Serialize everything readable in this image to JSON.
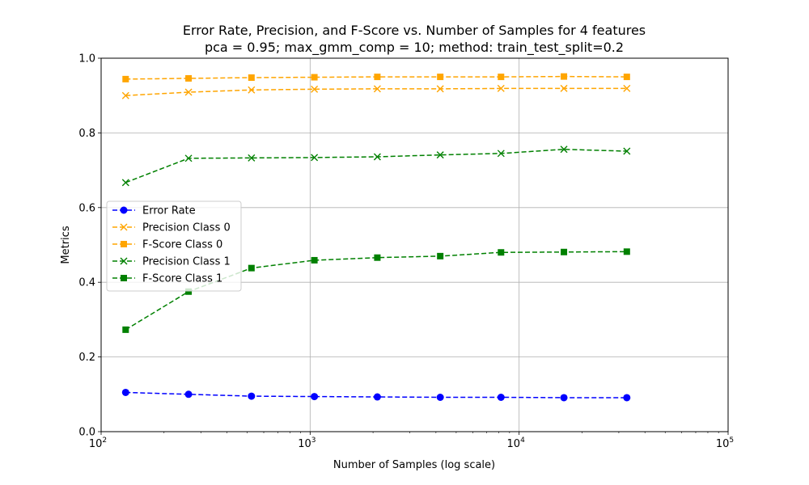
{
  "chart_data": {
    "type": "line",
    "title": "Error Rate, Precision, and F-Score vs. Number of Samples for 4 features",
    "subtitle": "pca = 0.95; max_gmm_comp = 10; method: train_test_split=0.2",
    "xlabel": "Number of Samples (log scale)",
    "ylabel": "Metrics",
    "xscale": "log",
    "xlim": [
      100,
      100000
    ],
    "ylim": [
      0,
      1
    ],
    "grid": true,
    "legend_position": "center-left",
    "x": [
      131,
      262,
      524,
      1048,
      2097,
      4194,
      8192,
      16384,
      32768
    ],
    "x_ticks": [
      {
        "base": "10",
        "exp": "2"
      },
      {
        "base": "10",
        "exp": "3"
      },
      {
        "base": "10",
        "exp": "4"
      },
      {
        "base": "10",
        "exp": "5"
      }
    ],
    "y_ticks": [
      "0.0",
      "0.2",
      "0.4",
      "0.6",
      "0.8",
      "1.0"
    ],
    "series": [
      {
        "name": "Error Rate",
        "color": "#0000ff",
        "marker": "circle",
        "values": [
          0.105,
          0.1,
          0.095,
          0.094,
          0.093,
          0.092,
          0.092,
          0.091,
          0.091
        ]
      },
      {
        "name": "Precision Class 0",
        "color": "#ffa500",
        "marker": "x",
        "values": [
          0.9,
          0.909,
          0.915,
          0.917,
          0.918,
          0.918,
          0.919,
          0.919,
          0.919
        ]
      },
      {
        "name": "F-Score Class 0",
        "color": "#ffa500",
        "marker": "square",
        "values": [
          0.944,
          0.946,
          0.948,
          0.949,
          0.95,
          0.95,
          0.95,
          0.951,
          0.95
        ]
      },
      {
        "name": "Precision Class 1",
        "color": "#008000",
        "marker": "x",
        "values": [
          0.667,
          0.732,
          0.733,
          0.734,
          0.736,
          0.741,
          0.745,
          0.756,
          0.751
        ]
      },
      {
        "name": "F-Score Class 1",
        "color": "#008000",
        "marker": "square",
        "values": [
          0.273,
          0.375,
          0.438,
          0.459,
          0.466,
          0.47,
          0.48,
          0.481,
          0.482
        ]
      }
    ]
  }
}
